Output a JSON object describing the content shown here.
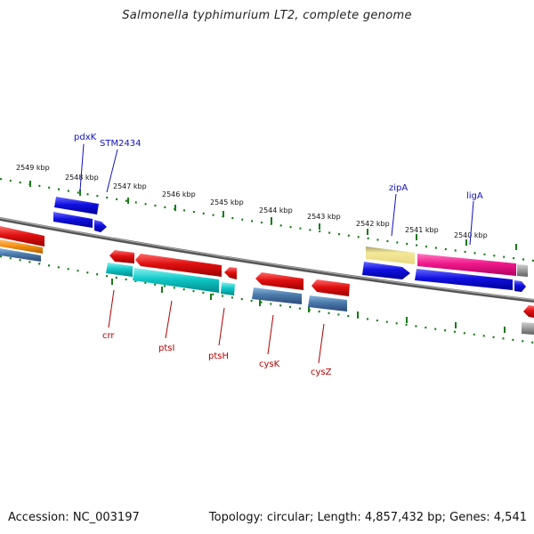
{
  "title": "Salmonella typhimurium LT2, complete genome",
  "footer": {
    "accession": "Accession: NC_003197",
    "summary": "Topology: circular; Length: 4,857,432 bp; Genes: 4,541"
  },
  "scale_labels": [
    "2549 kbp",
    "2548 kbp",
    "2547 kbp",
    "2546 kbp",
    "2545 kbp",
    "2544 kbp",
    "2543 kbp",
    "2542 kbp",
    "2541 kbp",
    "2540 kbp"
  ],
  "gene_labels_top": [
    "pdxK",
    "STM2434",
    "zipA",
    "ligA"
  ],
  "gene_labels_bottom": [
    "crr",
    "ptsI",
    "ptsH",
    "cysK",
    "cysZ"
  ],
  "colors": {
    "red": "#e01010",
    "blue": "#1010e0",
    "cyan": "#10c8c8",
    "steel": "#4a7aaa",
    "orange": "#f08c10",
    "khaki": "#ecdc90",
    "magenta": "#f0188c",
    "gray": "#888888",
    "tick_green": "#1a7a1a",
    "label_blue": "#1010c0",
    "label_red": "#b00000"
  }
}
